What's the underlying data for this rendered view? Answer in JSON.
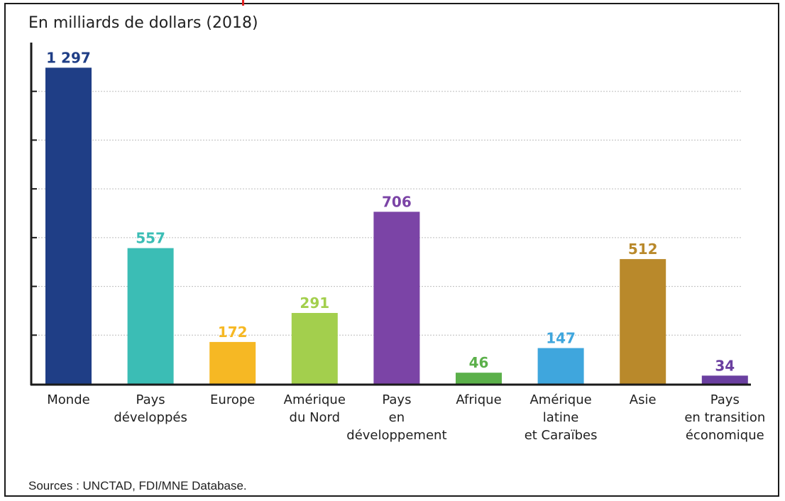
{
  "chart_data": {
    "type": "bar",
    "title": "En milliards de dollars (2018)",
    "categories": [
      [
        "Monde"
      ],
      [
        "Pays",
        "développés"
      ],
      [
        "Europe"
      ],
      [
        "Amérique",
        "du Nord"
      ],
      [
        "Pays",
        "en",
        "développement"
      ],
      [
        "Afrique"
      ],
      [
        "Amérique",
        "latine",
        "et Caraïbes"
      ],
      [
        "Asie"
      ],
      [
        "Pays",
        "en transition",
        "économique"
      ]
    ],
    "values": [
      1297,
      557,
      172,
      291,
      706,
      46,
      147,
      512,
      34
    ],
    "value_labels": [
      "1 297",
      "557",
      "172",
      "291",
      "706",
      "46",
      "147",
      "512",
      "34"
    ],
    "colors": [
      "#1f3e86",
      "#3bbdb5",
      "#f6b824",
      "#a3cf4d",
      "#7b44a6",
      "#5bb04a",
      "#3fa6dd",
      "#b9892b",
      "#6a3fa0"
    ],
    "ylim": [
      0,
      1400
    ],
    "grid": true,
    "source": "Sources : UNCTAD, FDI/MNE Database."
  }
}
